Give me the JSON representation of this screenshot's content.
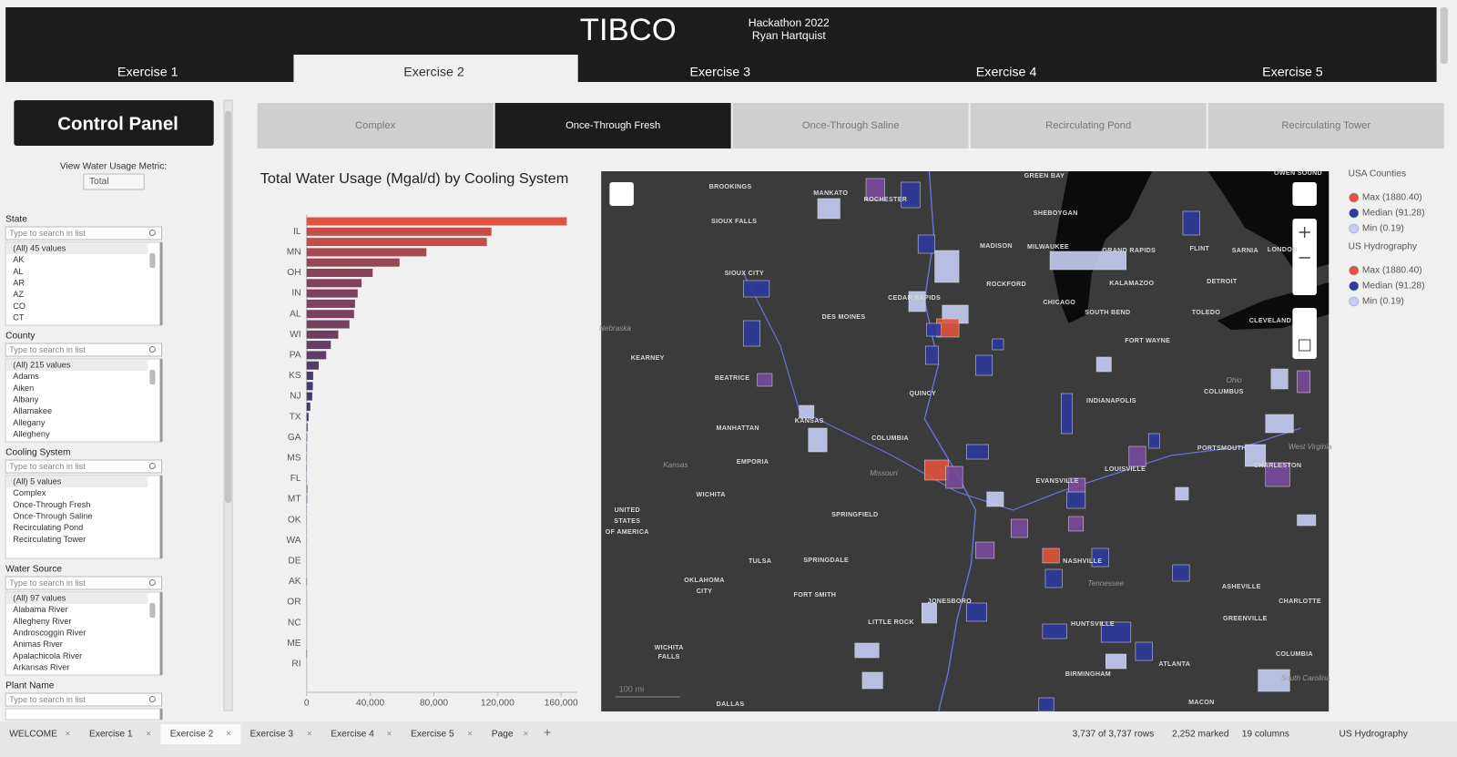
{
  "header": {
    "logo": "TIBCO",
    "event": "Hackathon 2022",
    "author": "Ryan Hartquist",
    "tabs": [
      "Exercise 1",
      "Exercise 2",
      "Exercise 3",
      "Exercise 4",
      "Exercise 5"
    ],
    "active_tab": 1
  },
  "control_panel": {
    "title": "Control Panel",
    "metric_label": "View Water Usage Metric:",
    "metric_value": "Total",
    "search_placeholder": "Type to search in list",
    "filters": [
      {
        "label": "State",
        "items": [
          "(All) 45 values",
          "AK",
          "AL",
          "AR",
          "AZ",
          "CO",
          "CT"
        ]
      },
      {
        "label": "County",
        "items": [
          "(All) 215 values",
          "Adams",
          "Aiken",
          "Albany",
          "Allamakee",
          "Allegany",
          "Allegheny"
        ]
      },
      {
        "label": "Cooling System",
        "items": [
          "(All) 5 values",
          "Complex",
          "Once-Through Fresh",
          "Once-Through Saline",
          "Recirculating Pond",
          "Recirculating Tower"
        ]
      },
      {
        "label": "Water Source",
        "items": [
          "(All) 97 values",
          "Alabama River",
          "Allegheny River",
          "Androscoggin River",
          "Animas River",
          "Apalachicola River",
          "Arkansas River"
        ]
      },
      {
        "label": "Plant Name",
        "items": []
      }
    ]
  },
  "cooling_tabs": {
    "items": [
      "Complex",
      "Once-Through Fresh",
      "Once-Through Saline",
      "Recirculating Pond",
      "Recirculating Tower"
    ],
    "active": 1
  },
  "chart_data": {
    "type": "bar",
    "orientation": "horizontal",
    "title": "Total Water Usage (Mgal/d) by Cooling System",
    "categories": [
      null,
      "IL",
      null,
      "MN",
      null,
      "OH",
      null,
      "IN",
      null,
      "AL",
      null,
      "WI",
      null,
      "PA",
      null,
      "KS",
      null,
      "NJ",
      null,
      "TX",
      null,
      "GA",
      null,
      "MS",
      null,
      "FL",
      null,
      "MT",
      null,
      "OK",
      null,
      "WA",
      null,
      "DE",
      null,
      "AK",
      null,
      "OR",
      null,
      "NC",
      null,
      "ME",
      null,
      "RI"
    ],
    "values": [
      163500,
      116200,
      113300,
      75300,
      58400,
      41500,
      34500,
      32100,
      30400,
      29800,
      26900,
      19900,
      15200,
      12300,
      7600,
      4100,
      3900,
      3500,
      2300,
      1200,
      600,
      300,
      200,
      150,
      150,
      100,
      400,
      300,
      100,
      100,
      80,
      60,
      50,
      40,
      30,
      200,
      20,
      15,
      10,
      10,
      5,
      5,
      200,
      0
    ],
    "color_max": "#e0533e",
    "color_min": "#2d3575",
    "xlim": [
      0,
      170000
    ],
    "xticks": [
      0,
      {
        "value": 40000,
        "label": "40,000"
      },
      {
        "value": 80000,
        "label": "80,000"
      },
      {
        "value": 120000,
        "label": "120,000"
      },
      {
        "value": 160000,
        "label": "160,000"
      }
    ]
  },
  "map": {
    "labels": [
      "GREEN BAY",
      "OWEN SOUND",
      "BROOKINGS",
      "MANKATO",
      "ROCHESTER",
      "SHEBOYGAN",
      "SIOUX FALLS",
      "MADISON",
      "MILWAUKEE",
      "GRAND RAPIDS",
      "FLINT",
      "SARNIA",
      "LONDON",
      "SIOUX CITY",
      "ROCKFORD",
      "KALAMAZOO",
      "DETROIT",
      "CEDAR RAPIDS",
      "CHICAGO",
      "DES MOINES",
      "SOUTH BEND",
      "TOLEDO",
      "CLEVELAND",
      "KEARNEY",
      "FORT WAYNE",
      "BEATRICE",
      "COLUMBUS",
      "QUINCY",
      "INDIANAPOLIS",
      "MANHATTAN",
      "KANSAS",
      "COLUMBIA",
      "PORTSMOUTH",
      "LOUISVILLE",
      "CHARLESTON",
      "EMPORIA",
      "WICHITA",
      "EVANSVILLE",
      "UNITED",
      "STATES",
      "OF AMERICA",
      "SPRINGFIELD",
      "TULSA",
      "SPRINGDALE",
      "NASHVILLE",
      "OKLAHOMA",
      "CITY",
      "FORT SMITH",
      "JONESBORO",
      "ASHEVILLE",
      "CHARLOTTE",
      "LITTLE ROCK",
      "GREENVILLE",
      "HUNTSVILLE",
      "WICHITA",
      "FALLS",
      "COLUMBIA",
      "ATLANTA",
      "BIRMINGHAM",
      "DALLAS",
      "MACON"
    ],
    "regions": [
      "Nebraska",
      "Ohio",
      "Kansas",
      "Missouri",
      "Tennessee",
      "West Virginia",
      "South Carolina"
    ],
    "scale": "100 mi"
  },
  "legend": {
    "groups": [
      {
        "title": "USA Counties",
        "items": [
          "Max (1880.40)",
          "Median (91.28)",
          "Min (0.19)"
        ]
      },
      {
        "title": "US Hydrography",
        "items": [
          "Max (1880.40)",
          "Median (91.28)",
          "Min (0.19)"
        ]
      }
    ],
    "colors": [
      "#e0533e",
      "#2e3a9c",
      "#c5cdf5"
    ]
  },
  "status_bar": {
    "pages": [
      "WELCOME",
      "Exercise 1",
      "Exercise 2",
      "Exercise 3",
      "Exercise 4",
      "Exercise 5",
      "Page"
    ],
    "active_page": 2,
    "rows": "3,737 of 3,737 rows",
    "marked": "2,252 marked",
    "columns": "19 columns",
    "layer": "US Hydrography"
  }
}
